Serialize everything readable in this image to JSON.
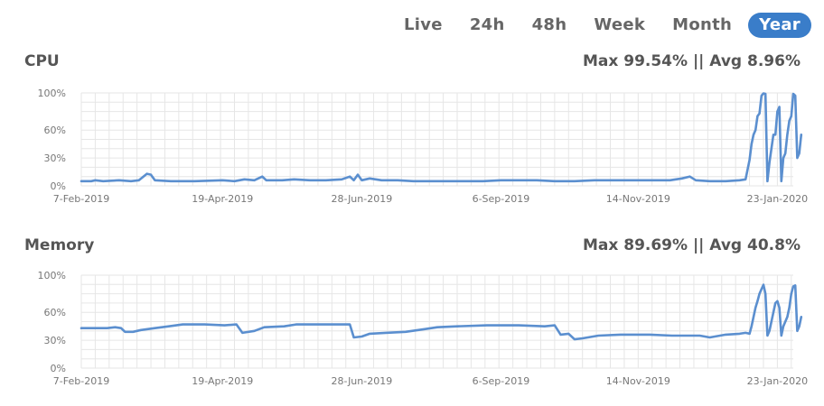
{
  "tabs": [
    {
      "label": "Live",
      "active": false
    },
    {
      "label": "24h",
      "active": false
    },
    {
      "label": "48h",
      "active": false
    },
    {
      "label": "Week",
      "active": false
    },
    {
      "label": "Month",
      "active": false
    },
    {
      "label": "Year",
      "active": true
    }
  ],
  "cpu": {
    "title": "CPU",
    "stats": "Max 99.54% || Avg 8.96%"
  },
  "memory": {
    "title": "Memory",
    "stats": "Max 89.69% || Avg 40.8%"
  },
  "colors": {
    "line": "#5b8fcf",
    "grid": "#e6e6e6",
    "active_tab": "#3a7dc9"
  },
  "chart_data": [
    {
      "type": "line",
      "name": "CPU",
      "x_type": "date",
      "xlim": [
        "2019-02-07",
        "2020-01-31"
      ],
      "x_ticks": [
        "2019-02-07",
        "2019-04-19",
        "2019-06-28",
        "2019-09-06",
        "2019-11-14",
        "2020-01-23"
      ],
      "x_tick_labels": [
        "7-Feb-2019",
        "19-Apr-2019",
        "28-Jun-2019",
        "6-Sep-2019",
        "14-Nov-2019",
        "23-Jan-2020"
      ],
      "y_ticks": [
        0,
        30,
        60,
        100
      ],
      "y_tick_labels": [
        "0%",
        "30%",
        "60%",
        "100%"
      ],
      "ylim": [
        0,
        100
      ],
      "grid": true,
      "points": [
        [
          "2019-02-07",
          5
        ],
        [
          "2019-02-12",
          5
        ],
        [
          "2019-02-14",
          6
        ],
        [
          "2019-02-18",
          5
        ],
        [
          "2019-02-26",
          6
        ],
        [
          "2019-03-04",
          5
        ],
        [
          "2019-03-08",
          6
        ],
        [
          "2019-03-12",
          13
        ],
        [
          "2019-03-14",
          12
        ],
        [
          "2019-03-16",
          6
        ],
        [
          "2019-03-24",
          5
        ],
        [
          "2019-04-05",
          5
        ],
        [
          "2019-04-19",
          6
        ],
        [
          "2019-04-25",
          5
        ],
        [
          "2019-04-30",
          7
        ],
        [
          "2019-05-05",
          6
        ],
        [
          "2019-05-09",
          10
        ],
        [
          "2019-05-11",
          6
        ],
        [
          "2019-05-19",
          6
        ],
        [
          "2019-05-25",
          7
        ],
        [
          "2019-06-02",
          6
        ],
        [
          "2019-06-10",
          6
        ],
        [
          "2019-06-18",
          7
        ],
        [
          "2019-06-22",
          10
        ],
        [
          "2019-06-24",
          6
        ],
        [
          "2019-06-26",
          12
        ],
        [
          "2019-06-28",
          6
        ],
        [
          "2019-07-02",
          8
        ],
        [
          "2019-07-08",
          6
        ],
        [
          "2019-07-16",
          6
        ],
        [
          "2019-07-24",
          5
        ],
        [
          "2019-08-04",
          5
        ],
        [
          "2019-08-16",
          5
        ],
        [
          "2019-08-28",
          5
        ],
        [
          "2019-09-06",
          6
        ],
        [
          "2019-09-16",
          6
        ],
        [
          "2019-09-24",
          6
        ],
        [
          "2019-10-03",
          5
        ],
        [
          "2019-10-13",
          5
        ],
        [
          "2019-10-23",
          6
        ],
        [
          "2019-11-01",
          6
        ],
        [
          "2019-11-08",
          6
        ],
        [
          "2019-11-14",
          6
        ],
        [
          "2019-11-22",
          6
        ],
        [
          "2019-11-30",
          6
        ],
        [
          "2019-12-06",
          8
        ],
        [
          "2019-12-10",
          10
        ],
        [
          "2019-12-13",
          6
        ],
        [
          "2019-12-20",
          5
        ],
        [
          "2019-12-28",
          5
        ],
        [
          "2020-01-04",
          6
        ],
        [
          "2020-01-07",
          7
        ],
        [
          "2020-01-09",
          28
        ],
        [
          "2020-01-10",
          45
        ],
        [
          "2020-01-11",
          55
        ],
        [
          "2020-01-12",
          60
        ],
        [
          "2020-01-13",
          75
        ],
        [
          "2020-01-14",
          78
        ],
        [
          "2020-01-15",
          97
        ],
        [
          "2020-01-16",
          99.5
        ],
        [
          "2020-01-17",
          99
        ],
        [
          "2020-01-18",
          5
        ],
        [
          "2020-01-19",
          25
        ],
        [
          "2020-01-20",
          40
        ],
        [
          "2020-01-21",
          55
        ],
        [
          "2020-01-22",
          55
        ],
        [
          "2020-01-23",
          80
        ],
        [
          "2020-01-24",
          85
        ],
        [
          "2020-01-25",
          5
        ],
        [
          "2020-01-26",
          30
        ],
        [
          "2020-01-27",
          35
        ],
        [
          "2020-01-28",
          55
        ],
        [
          "2020-01-29",
          70
        ],
        [
          "2020-01-30",
          75
        ],
        [
          "2020-01-31",
          99
        ],
        [
          "2020-02-01",
          97
        ],
        [
          "2020-02-02",
          30
        ],
        [
          "2020-02-03",
          35
        ],
        [
          "2020-02-04",
          55
        ]
      ]
    },
    {
      "type": "line",
      "name": "Memory",
      "x_type": "date",
      "xlim": [
        "2019-02-07",
        "2020-01-31"
      ],
      "x_ticks": [
        "2019-02-07",
        "2019-04-19",
        "2019-06-28",
        "2019-09-06",
        "2019-11-14",
        "2020-01-23"
      ],
      "x_tick_labels": [
        "7-Feb-2019",
        "19-Apr-2019",
        "28-Jun-2019",
        "6-Sep-2019",
        "14-Nov-2019",
        "23-Jan-2020"
      ],
      "y_ticks": [
        0,
        30,
        60,
        100
      ],
      "y_tick_labels": [
        "0%",
        "30%",
        "60%",
        "100%"
      ],
      "ylim": [
        0,
        100
      ],
      "grid": true,
      "points": [
        [
          "2019-02-07",
          43
        ],
        [
          "2019-02-20",
          43
        ],
        [
          "2019-02-24",
          44
        ],
        [
          "2019-02-27",
          43
        ],
        [
          "2019-03-01",
          39
        ],
        [
          "2019-03-05",
          39
        ],
        [
          "2019-03-09",
          41
        ],
        [
          "2019-03-16",
          43
        ],
        [
          "2019-03-23",
          45
        ],
        [
          "2019-03-30",
          47
        ],
        [
          "2019-04-10",
          47
        ],
        [
          "2019-04-20",
          46
        ],
        [
          "2019-04-26",
          47
        ],
        [
          "2019-04-29",
          38
        ],
        [
          "2019-05-05",
          40
        ],
        [
          "2019-05-10",
          44
        ],
        [
          "2019-05-20",
          45
        ],
        [
          "2019-05-26",
          47
        ],
        [
          "2019-06-10",
          47
        ],
        [
          "2019-06-22",
          47
        ],
        [
          "2019-06-24",
          33
        ],
        [
          "2019-06-28",
          34
        ],
        [
          "2019-07-02",
          37
        ],
        [
          "2019-07-10",
          38
        ],
        [
          "2019-07-20",
          39
        ],
        [
          "2019-07-30",
          42
        ],
        [
          "2019-08-05",
          44
        ],
        [
          "2019-08-15",
          45
        ],
        [
          "2019-08-30",
          46
        ],
        [
          "2019-09-15",
          46
        ],
        [
          "2019-09-28",
          45
        ],
        [
          "2019-10-03",
          46
        ],
        [
          "2019-10-06",
          36
        ],
        [
          "2019-10-10",
          37
        ],
        [
          "2019-10-13",
          31
        ],
        [
          "2019-10-17",
          32
        ],
        [
          "2019-10-25",
          35
        ],
        [
          "2019-11-05",
          36
        ],
        [
          "2019-11-20",
          36
        ],
        [
          "2019-12-01",
          35
        ],
        [
          "2019-12-15",
          35
        ],
        [
          "2019-12-20",
          33
        ],
        [
          "2019-12-28",
          36
        ],
        [
          "2020-01-04",
          37
        ],
        [
          "2020-01-07",
          38
        ],
        [
          "2020-01-09",
          37
        ],
        [
          "2020-01-10",
          45
        ],
        [
          "2020-01-11",
          55
        ],
        [
          "2020-01-12",
          65
        ],
        [
          "2020-01-13",
          72
        ],
        [
          "2020-01-14",
          80
        ],
        [
          "2020-01-15",
          85
        ],
        [
          "2020-01-16",
          89.7
        ],
        [
          "2020-01-17",
          80
        ],
        [
          "2020-01-18",
          35
        ],
        [
          "2020-01-19",
          40
        ],
        [
          "2020-01-20",
          50
        ],
        [
          "2020-01-21",
          60
        ],
        [
          "2020-01-22",
          70
        ],
        [
          "2020-01-23",
          72
        ],
        [
          "2020-01-24",
          65
        ],
        [
          "2020-01-25",
          35
        ],
        [
          "2020-01-26",
          45
        ],
        [
          "2020-01-27",
          50
        ],
        [
          "2020-01-28",
          55
        ],
        [
          "2020-01-29",
          65
        ],
        [
          "2020-01-30",
          80
        ],
        [
          "2020-01-31",
          88
        ],
        [
          "2020-02-01",
          89
        ],
        [
          "2020-02-02",
          40
        ],
        [
          "2020-02-03",
          45
        ],
        [
          "2020-02-04",
          55
        ]
      ]
    }
  ]
}
